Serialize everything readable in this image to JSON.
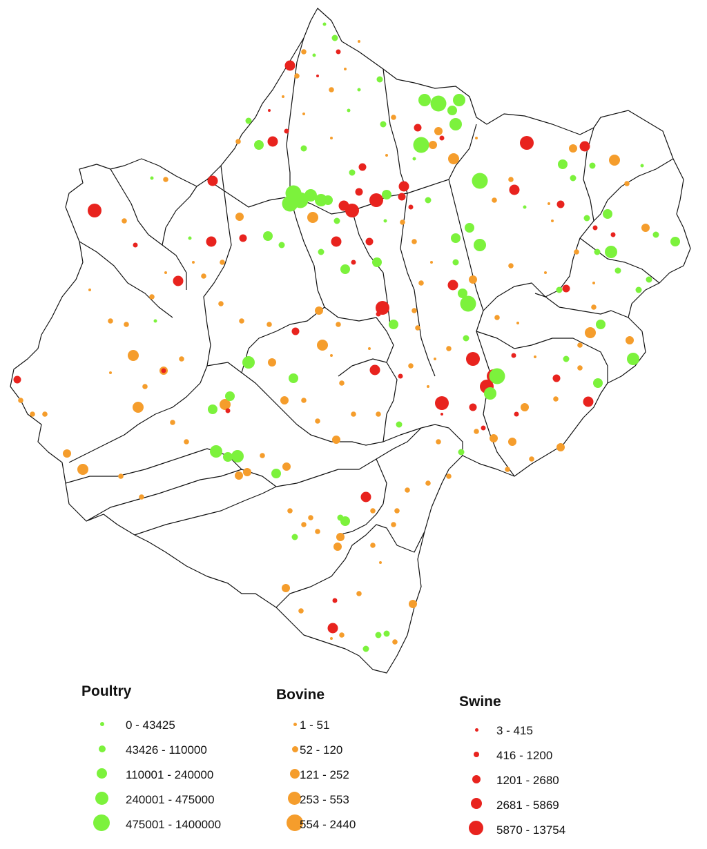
{
  "colors": {
    "poultry": "#7cf23c",
    "bovine": "#f59d2c",
    "swine": "#e8231e",
    "boundary": "#111111"
  },
  "legend": {
    "poultry": {
      "title": "Poultry",
      "classes": [
        "0 - 43425",
        "43426 - 110000",
        "110001 - 240000",
        "240001 - 475000",
        "475001 - 1400000"
      ]
    },
    "bovine": {
      "title": "Bovine",
      "classes": [
        "1 - 51",
        "52 - 120",
        "121 - 252",
        "253 - 553",
        "554 - 2440"
      ]
    },
    "swine": {
      "title": "Swine",
      "classes": [
        "3 - 415",
        "416 - 1200",
        "1201 - 2680",
        "2681 - 5869",
        "5870 - 13754"
      ]
    }
  }
}
